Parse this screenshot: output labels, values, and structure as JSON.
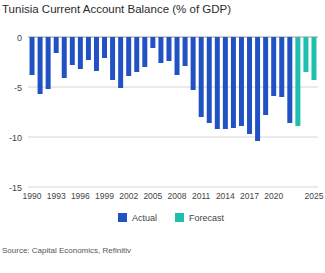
{
  "chart_data": {
    "type": "bar",
    "title": "Tunisia Current Account Balance (% of GDP)",
    "source": "Source: Capital Economics, Refinitiv",
    "categories": [
      "1990",
      null,
      null,
      "1993",
      null,
      null,
      "1996",
      null,
      null,
      "1999",
      null,
      null,
      "2002",
      null,
      null,
      "2005",
      null,
      null,
      "2008",
      null,
      null,
      "2011",
      null,
      null,
      "2014",
      null,
      null,
      "2017",
      null,
      null,
      "2020",
      null,
      null,
      null,
      null,
      "2025"
    ],
    "series": [
      {
        "name": "Actual",
        "color": "#2152c4",
        "values": [
          -3.8,
          -5.7,
          -5.2,
          -1.6,
          -4.1,
          -2.8,
          -3.2,
          -2.3,
          -3.4,
          -2.1,
          -4.3,
          -5.1,
          -3.9,
          -3.5,
          -3.0,
          -1.1,
          -2.6,
          -2.4,
          -3.8,
          -2.9,
          -5.3,
          -8.0,
          -8.6,
          -9.2,
          -9.2,
          -9.1,
          -8.9,
          -9.7,
          -10.4,
          -7.8,
          -5.9,
          -6.0,
          -8.6,
          null,
          null,
          null
        ]
      },
      {
        "name": "Forecast",
        "color": "#1fbfae",
        "values": [
          null,
          null,
          null,
          null,
          null,
          null,
          null,
          null,
          null,
          null,
          null,
          null,
          null,
          null,
          null,
          null,
          null,
          null,
          null,
          null,
          null,
          null,
          null,
          null,
          null,
          null,
          null,
          null,
          null,
          null,
          null,
          null,
          null,
          -8.9,
          -3.5,
          -4.3
        ]
      }
    ],
    "ylim": [
      -15,
      0
    ],
    "yticks": [
      -15,
      -10,
      -5,
      0
    ],
    "grid": true,
    "legend": "bottom"
  }
}
